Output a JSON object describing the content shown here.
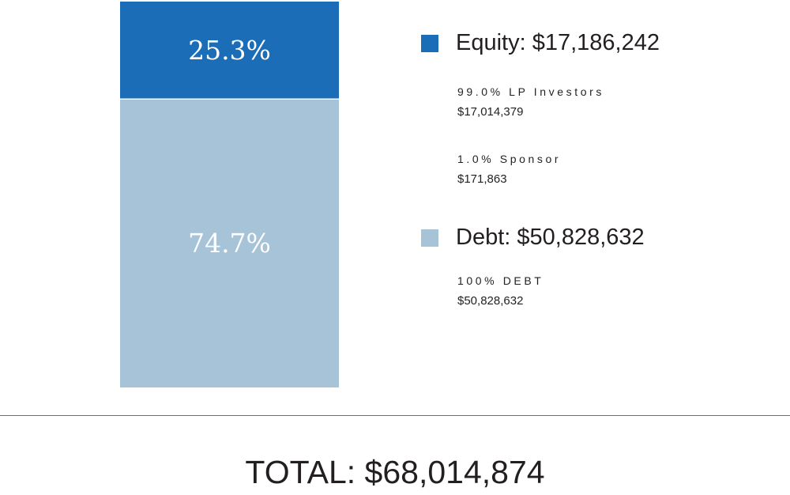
{
  "chart_data": {
    "type": "bar",
    "stacked": true,
    "orientation": "vertical",
    "series": [
      {
        "name": "Equity",
        "value": 17186242,
        "percent": 25.3,
        "percent_label": "25.3%",
        "color": "#1a6db6"
      },
      {
        "name": "Debt",
        "value": 50828632,
        "percent": 74.7,
        "percent_label": "74.7%",
        "color": "#a6c3d8"
      }
    ],
    "total": 68014874
  },
  "legend": {
    "equity": {
      "title": "Equity: $17,186,242",
      "color": "#1a6db6",
      "items": [
        {
          "label": "99.0% LP Investors",
          "value": "$17,014,379"
        },
        {
          "label": "1.0% Sponsor",
          "value": "$171,863"
        }
      ]
    },
    "debt": {
      "title": "Debt: $50,828,632",
      "color": "#a6c3d8",
      "items": [
        {
          "label": "100% DEBT",
          "value": "$50,828,632"
        }
      ]
    }
  },
  "total_label": "TOTAL: $68,014,874"
}
